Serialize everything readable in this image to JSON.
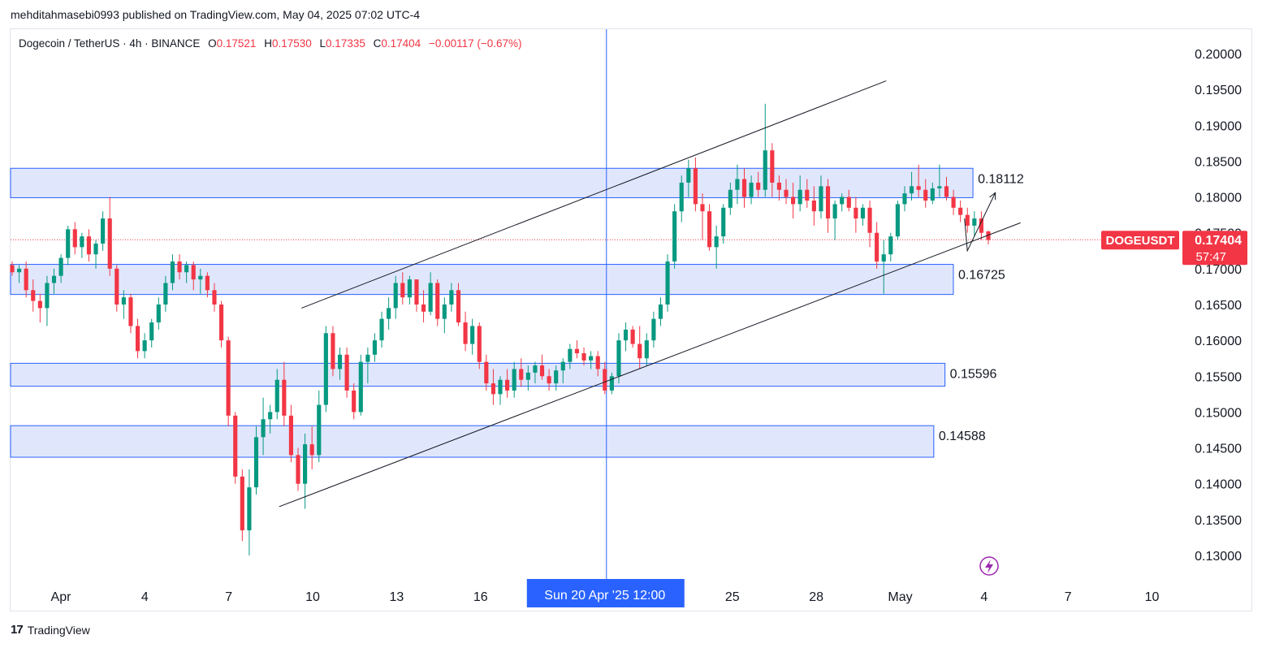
{
  "header": {
    "published_text": "mehditahmasebi0993 published on TradingView.com, May 04, 2025 07:02 UTC-4"
  },
  "symbol_bar": {
    "name": "Dogecoin / TetherUS · 4h · BINANCE",
    "o_label": "O",
    "o_value": "0.17521",
    "h_label": "H",
    "h_value": "0.17530",
    "l_label": "L",
    "l_value": "0.17335",
    "c_label": "C",
    "c_value": "0.17404",
    "change": "−0.00117 (−0.67%)"
  },
  "colors": {
    "up": "#089981",
    "down": "#f23645",
    "zone_fill": "#dbe3fd",
    "zone_border": "#2962ff",
    "crosshair": "#2962ff",
    "trendline": "#131722",
    "price_label_bg": "#f23645"
  },
  "footer": {
    "brand": "TradingView",
    "logo_icon": "tradingview-logo-icon"
  },
  "chart_data": {
    "type": "candlestick",
    "symbol": "DOGEUSDT",
    "timeframe": "4h",
    "ylim": [
      0.1285,
      0.2025
    ],
    "y_ticks": [
      "0.20000",
      "0.19500",
      "0.19000",
      "0.18500",
      "0.18000",
      "0.17500",
      "0.17000",
      "0.16500",
      "0.16000",
      "0.15500",
      "0.15000",
      "0.14500",
      "0.14000",
      "0.13500",
      "0.13000"
    ],
    "x_ticks": [
      {
        "label": "Apr",
        "day": 1
      },
      {
        "label": "4",
        "day": 4
      },
      {
        "label": "7",
        "day": 7
      },
      {
        "label": "10",
        "day": 10
      },
      {
        "label": "13",
        "day": 13
      },
      {
        "label": "16",
        "day": 16
      },
      {
        "label": "25",
        "day": 25
      },
      {
        "label": "28",
        "day": 28
      },
      {
        "label": "May",
        "day": 31
      },
      {
        "label": "4",
        "day": 34
      },
      {
        "label": "7",
        "day": 37
      },
      {
        "label": "10",
        "day": 40
      }
    ],
    "crosshair": {
      "day": 20.5,
      "label": "Sun 20 Apr '25   12:00"
    },
    "last_price": {
      "symbol": "DOGEUSDT",
      "value": "0.17404",
      "countdown": "57:47"
    },
    "zones": [
      {
        "top": 0.184,
        "bottom": 0.1799,
        "end_day": 33.6,
        "label": "0.18112"
      },
      {
        "top": 0.1706,
        "bottom": 0.1664,
        "end_day": 32.9,
        "label": "0.16725"
      },
      {
        "top": 0.1568,
        "bottom": 0.1536,
        "end_day": 32.6,
        "label": "0.15596"
      },
      {
        "top": 0.1481,
        "bottom": 0.1437,
        "end_day": 32.2,
        "label": "0.14588"
      }
    ],
    "channel_lines": [
      {
        "from": [
          8.8,
          0.1368
        ],
        "to": [
          35.3,
          0.1764
        ]
      },
      {
        "from": [
          9.6,
          0.1645
        ],
        "to": [
          30.5,
          0.1962
        ]
      }
    ],
    "projection": [
      [
        33.3,
        0.177
      ],
      [
        33.4,
        0.1725
      ],
      [
        34.4,
        0.1806
      ]
    ],
    "candles": [
      [
        0.1705,
        0.171,
        0.169,
        0.1695
      ],
      [
        0.1695,
        0.1705,
        0.168,
        0.17
      ],
      [
        0.17,
        0.171,
        0.166,
        0.167
      ],
      [
        0.167,
        0.1685,
        0.164,
        0.1655
      ],
      [
        0.1655,
        0.1665,
        0.1625,
        0.1645
      ],
      [
        0.1645,
        0.169,
        0.162,
        0.168
      ],
      [
        0.168,
        0.17,
        0.1665,
        0.169
      ],
      [
        0.169,
        0.172,
        0.168,
        0.1715
      ],
      [
        0.1715,
        0.176,
        0.1705,
        0.1755
      ],
      [
        0.1755,
        0.1765,
        0.172,
        0.173
      ],
      [
        0.173,
        0.175,
        0.1715,
        0.1745
      ],
      [
        0.1745,
        0.1755,
        0.171,
        0.172
      ],
      [
        0.172,
        0.174,
        0.17,
        0.1735
      ],
      [
        0.1735,
        0.178,
        0.1725,
        0.177
      ],
      [
        0.177,
        0.18,
        0.169,
        0.17
      ],
      [
        0.17,
        0.1705,
        0.164,
        0.165
      ],
      [
        0.165,
        0.167,
        0.163,
        0.166
      ],
      [
        0.166,
        0.1665,
        0.161,
        0.162
      ],
      [
        0.162,
        0.163,
        0.1575,
        0.1585
      ],
      [
        0.1585,
        0.161,
        0.1575,
        0.16
      ],
      [
        0.16,
        0.163,
        0.159,
        0.1625
      ],
      [
        0.1625,
        0.166,
        0.1615,
        0.165
      ],
      [
        0.165,
        0.169,
        0.164,
        0.168
      ],
      [
        0.168,
        0.172,
        0.167,
        0.171
      ],
      [
        0.171,
        0.172,
        0.1685,
        0.1695
      ],
      [
        0.1695,
        0.171,
        0.168,
        0.1705
      ],
      [
        0.1705,
        0.171,
        0.167,
        0.1685
      ],
      [
        0.1685,
        0.17,
        0.1665,
        0.169
      ],
      [
        0.169,
        0.1695,
        0.166,
        0.167
      ],
      [
        0.167,
        0.168,
        0.164,
        0.165
      ],
      [
        0.165,
        0.1655,
        0.159,
        0.16
      ],
      [
        0.16,
        0.1605,
        0.148,
        0.1495
      ],
      [
        0.1495,
        0.15,
        0.14,
        0.141
      ],
      [
        0.141,
        0.142,
        0.132,
        0.1335
      ],
      [
        0.1335,
        0.142,
        0.13,
        0.1395
      ],
      [
        0.1395,
        0.148,
        0.1385,
        0.1465
      ],
      [
        0.1465,
        0.152,
        0.144,
        0.149
      ],
      [
        0.149,
        0.151,
        0.147,
        0.15
      ],
      [
        0.15,
        0.156,
        0.149,
        0.1545
      ],
      [
        0.1545,
        0.157,
        0.148,
        0.1495
      ],
      [
        0.1495,
        0.151,
        0.143,
        0.144
      ],
      [
        0.144,
        0.145,
        0.139,
        0.14
      ],
      [
        0.14,
        0.147,
        0.1365,
        0.1455
      ],
      [
        0.1455,
        0.148,
        0.142,
        0.144
      ],
      [
        0.144,
        0.153,
        0.143,
        0.151
      ],
      [
        0.151,
        0.162,
        0.15,
        0.161
      ],
      [
        0.161,
        0.162,
        0.155,
        0.156
      ],
      [
        0.156,
        0.159,
        0.1545,
        0.158
      ],
      [
        0.158,
        0.159,
        0.152,
        0.153
      ],
      [
        0.153,
        0.154,
        0.149,
        0.15
      ],
      [
        0.15,
        0.158,
        0.1495,
        0.157
      ],
      [
        0.157,
        0.159,
        0.154,
        0.158
      ],
      [
        0.158,
        0.161,
        0.157,
        0.16
      ],
      [
        0.16,
        0.164,
        0.159,
        0.163
      ],
      [
        0.163,
        0.166,
        0.1615,
        0.1645
      ],
      [
        0.1645,
        0.169,
        0.163,
        0.168
      ],
      [
        0.168,
        0.1695,
        0.165,
        0.166
      ],
      [
        0.166,
        0.169,
        0.165,
        0.1685
      ],
      [
        0.1685,
        0.168,
        0.164,
        0.165
      ],
      [
        0.165,
        0.167,
        0.1625,
        0.164
      ],
      [
        0.164,
        0.1695,
        0.1635,
        0.168
      ],
      [
        0.168,
        0.1685,
        0.162,
        0.163
      ],
      [
        0.163,
        0.166,
        0.161,
        0.165
      ],
      [
        0.165,
        0.168,
        0.164,
        0.167
      ],
      [
        0.167,
        0.168,
        0.162,
        0.1625
      ],
      [
        0.1625,
        0.164,
        0.1585,
        0.1595
      ],
      [
        0.1595,
        0.163,
        0.158,
        0.162
      ],
      [
        0.162,
        0.1625,
        0.156,
        0.157
      ],
      [
        0.157,
        0.158,
        0.153,
        0.154
      ],
      [
        0.154,
        0.156,
        0.151,
        0.1525
      ],
      [
        0.1525,
        0.155,
        0.151,
        0.1545
      ],
      [
        0.1545,
        0.156,
        0.152,
        0.153
      ],
      [
        0.153,
        0.157,
        0.152,
        0.156
      ],
      [
        0.156,
        0.1575,
        0.1535,
        0.1545
      ],
      [
        0.1545,
        0.1565,
        0.153,
        0.1555
      ],
      [
        0.1555,
        0.157,
        0.154,
        0.1565
      ],
      [
        0.1565,
        0.158,
        0.1545,
        0.155
      ],
      [
        0.155,
        0.156,
        0.153,
        0.154
      ],
      [
        0.154,
        0.1565,
        0.153,
        0.1558
      ],
      [
        0.1558,
        0.1575,
        0.154,
        0.157
      ],
      [
        0.157,
        0.1595,
        0.156,
        0.1588
      ],
      [
        0.1588,
        0.16,
        0.1575,
        0.1582
      ],
      [
        0.1582,
        0.159,
        0.1565,
        0.1572
      ],
      [
        0.1572,
        0.1585,
        0.156,
        0.1578
      ],
      [
        0.1578,
        0.1585,
        0.155,
        0.156
      ],
      [
        0.156,
        0.157,
        0.1525,
        0.153
      ],
      [
        0.153,
        0.1555,
        0.1525,
        0.155
      ],
      [
        0.155,
        0.161,
        0.154,
        0.16
      ],
      [
        0.16,
        0.1625,
        0.1585,
        0.1615
      ],
      [
        0.1615,
        0.162,
        0.159,
        0.1595
      ],
      [
        0.1595,
        0.162,
        0.156,
        0.1575
      ],
      [
        0.1575,
        0.161,
        0.1565,
        0.16
      ],
      [
        0.16,
        0.164,
        0.159,
        0.163
      ],
      [
        0.163,
        0.166,
        0.162,
        0.165
      ],
      [
        0.165,
        0.172,
        0.164,
        0.171
      ],
      [
        0.171,
        0.179,
        0.17,
        0.178
      ],
      [
        0.178,
        0.183,
        0.1765,
        0.182
      ],
      [
        0.182,
        0.1852,
        0.18,
        0.184
      ],
      [
        0.184,
        0.1855,
        0.178,
        0.179
      ],
      [
        0.179,
        0.1805,
        0.174,
        0.178
      ],
      [
        0.178,
        0.179,
        0.1725,
        0.173
      ],
      [
        0.173,
        0.176,
        0.17,
        0.1745
      ],
      [
        0.1745,
        0.179,
        0.1735,
        0.1785
      ],
      [
        0.1785,
        0.182,
        0.1775,
        0.181
      ],
      [
        0.181,
        0.1845,
        0.179,
        0.1825
      ],
      [
        0.1825,
        0.184,
        0.1785,
        0.18
      ],
      [
        0.18,
        0.183,
        0.179,
        0.182
      ],
      [
        0.182,
        0.1835,
        0.18,
        0.181
      ],
      [
        0.181,
        0.193,
        0.18,
        0.1865
      ],
      [
        0.1865,
        0.1875,
        0.18,
        0.182
      ],
      [
        0.182,
        0.183,
        0.1795,
        0.181
      ],
      [
        0.181,
        0.1825,
        0.179,
        0.18
      ],
      [
        0.18,
        0.182,
        0.177,
        0.179
      ],
      [
        0.179,
        0.183,
        0.178,
        0.181
      ],
      [
        0.181,
        0.1825,
        0.1785,
        0.1795
      ],
      [
        0.1795,
        0.1815,
        0.176,
        0.178
      ],
      [
        0.178,
        0.183,
        0.177,
        0.1815
      ],
      [
        0.1815,
        0.1825,
        0.175,
        0.177
      ],
      [
        0.177,
        0.1795,
        0.174,
        0.179
      ],
      [
        0.179,
        0.1805,
        0.178,
        0.18
      ],
      [
        0.18,
        0.181,
        0.178,
        0.1785
      ],
      [
        0.1785,
        0.18,
        0.175,
        0.177
      ],
      [
        0.177,
        0.179,
        0.176,
        0.1785
      ],
      [
        0.1785,
        0.1795,
        0.173,
        0.175
      ],
      [
        0.175,
        0.1765,
        0.17,
        0.171
      ],
      [
        0.171,
        0.174,
        0.1665,
        0.172
      ],
      [
        0.172,
        0.175,
        0.171,
        0.1745
      ],
      [
        0.1745,
        0.1795,
        0.174,
        0.179
      ],
      [
        0.179,
        0.1815,
        0.178,
        0.1805
      ],
      [
        0.1805,
        0.1835,
        0.1795,
        0.1815
      ],
      [
        0.1815,
        0.1845,
        0.18,
        0.181
      ],
      [
        0.181,
        0.1825,
        0.1785,
        0.1795
      ],
      [
        0.1795,
        0.182,
        0.179,
        0.1812
      ],
      [
        0.1812,
        0.1845,
        0.18,
        0.1815
      ],
      [
        0.1815,
        0.1828,
        0.1795,
        0.18
      ],
      [
        0.18,
        0.181,
        0.1775,
        0.1785
      ],
      [
        0.1785,
        0.1795,
        0.1765,
        0.1775
      ],
      [
        0.1775,
        0.1785,
        0.175,
        0.176
      ],
      [
        0.176,
        0.178,
        0.1745,
        0.177
      ],
      [
        0.177,
        0.178,
        0.174,
        0.175
      ],
      [
        0.1752,
        0.1753,
        0.1734,
        0.174
      ]
    ]
  }
}
